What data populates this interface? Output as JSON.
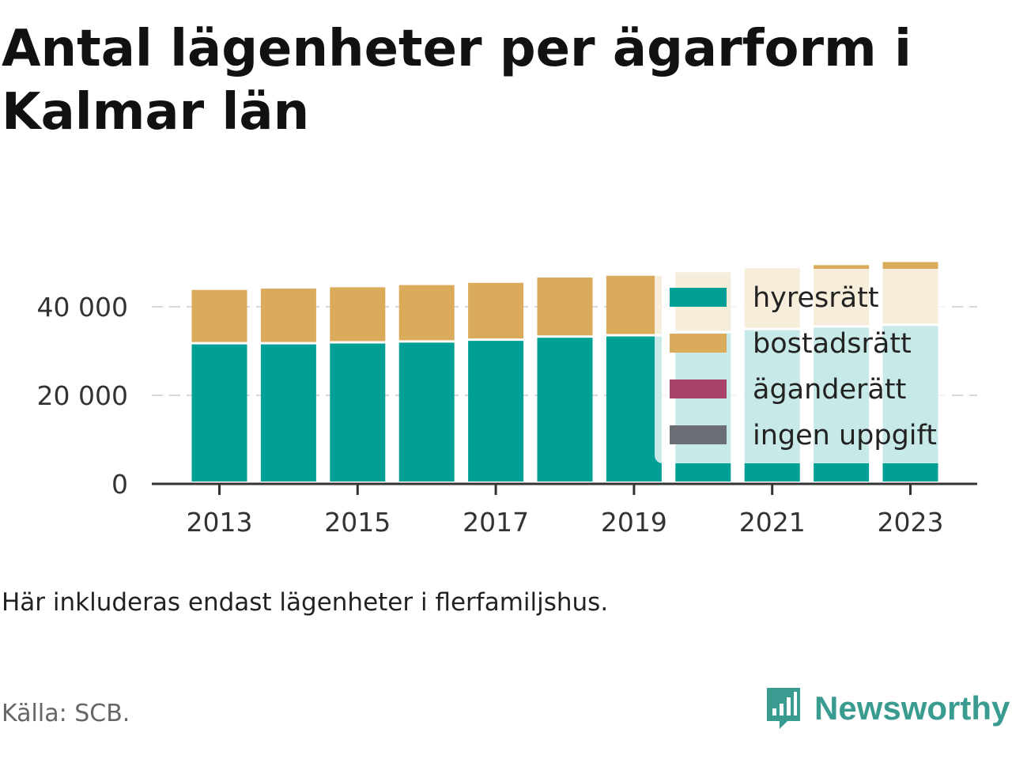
{
  "title": "Antal lägenheter per ägarform i Kalmar län",
  "note": "Här inkluderas endast lägenheter i flerfamiljshus.",
  "source": "Källa: SCB.",
  "brand": {
    "name": "Newsworthy",
    "icon": "newsworthy-logo-icon",
    "color": "#3a9c91"
  },
  "chart_data": {
    "type": "bar",
    "stacked": true,
    "title": "Antal lägenheter per ägarform i Kalmar län",
    "xlabel": "",
    "ylabel": "",
    "categories": [
      "2013",
      "2014",
      "2015",
      "2016",
      "2017",
      "2018",
      "2019",
      "2020",
      "2021",
      "2022",
      "2023"
    ],
    "x_tick_labels": [
      "2013",
      "2015",
      "2017",
      "2019",
      "2021",
      "2023"
    ],
    "y_ticks": [
      0,
      20000,
      40000
    ],
    "y_tick_labels": [
      "0",
      "20 000",
      "40 000"
    ],
    "ylim": [
      0,
      50000
    ],
    "grid": "horizontal",
    "legend_position": "right",
    "series": [
      {
        "name": "hyresrätt",
        "color": "#00a096",
        "values": [
          31500,
          31500,
          31700,
          31900,
          32300,
          33000,
          33300,
          34000,
          34700,
          35300,
          35700
        ]
      },
      {
        "name": "bostadsrätt",
        "color": "#d9ab5a",
        "values": [
          12300,
          12600,
          12700,
          13000,
          13100,
          13600,
          13700,
          13800,
          13900,
          14100,
          14400
        ]
      },
      {
        "name": "äganderätt",
        "color": "#a8426a",
        "values": [
          0,
          0,
          0,
          0,
          0,
          0,
          0,
          0,
          0,
          0,
          0
        ]
      },
      {
        "name": "ingen uppgift",
        "color": "#6b6e74",
        "values": [
          0,
          0,
          0,
          0,
          0,
          0,
          0,
          0,
          0,
          0,
          0
        ]
      }
    ]
  }
}
